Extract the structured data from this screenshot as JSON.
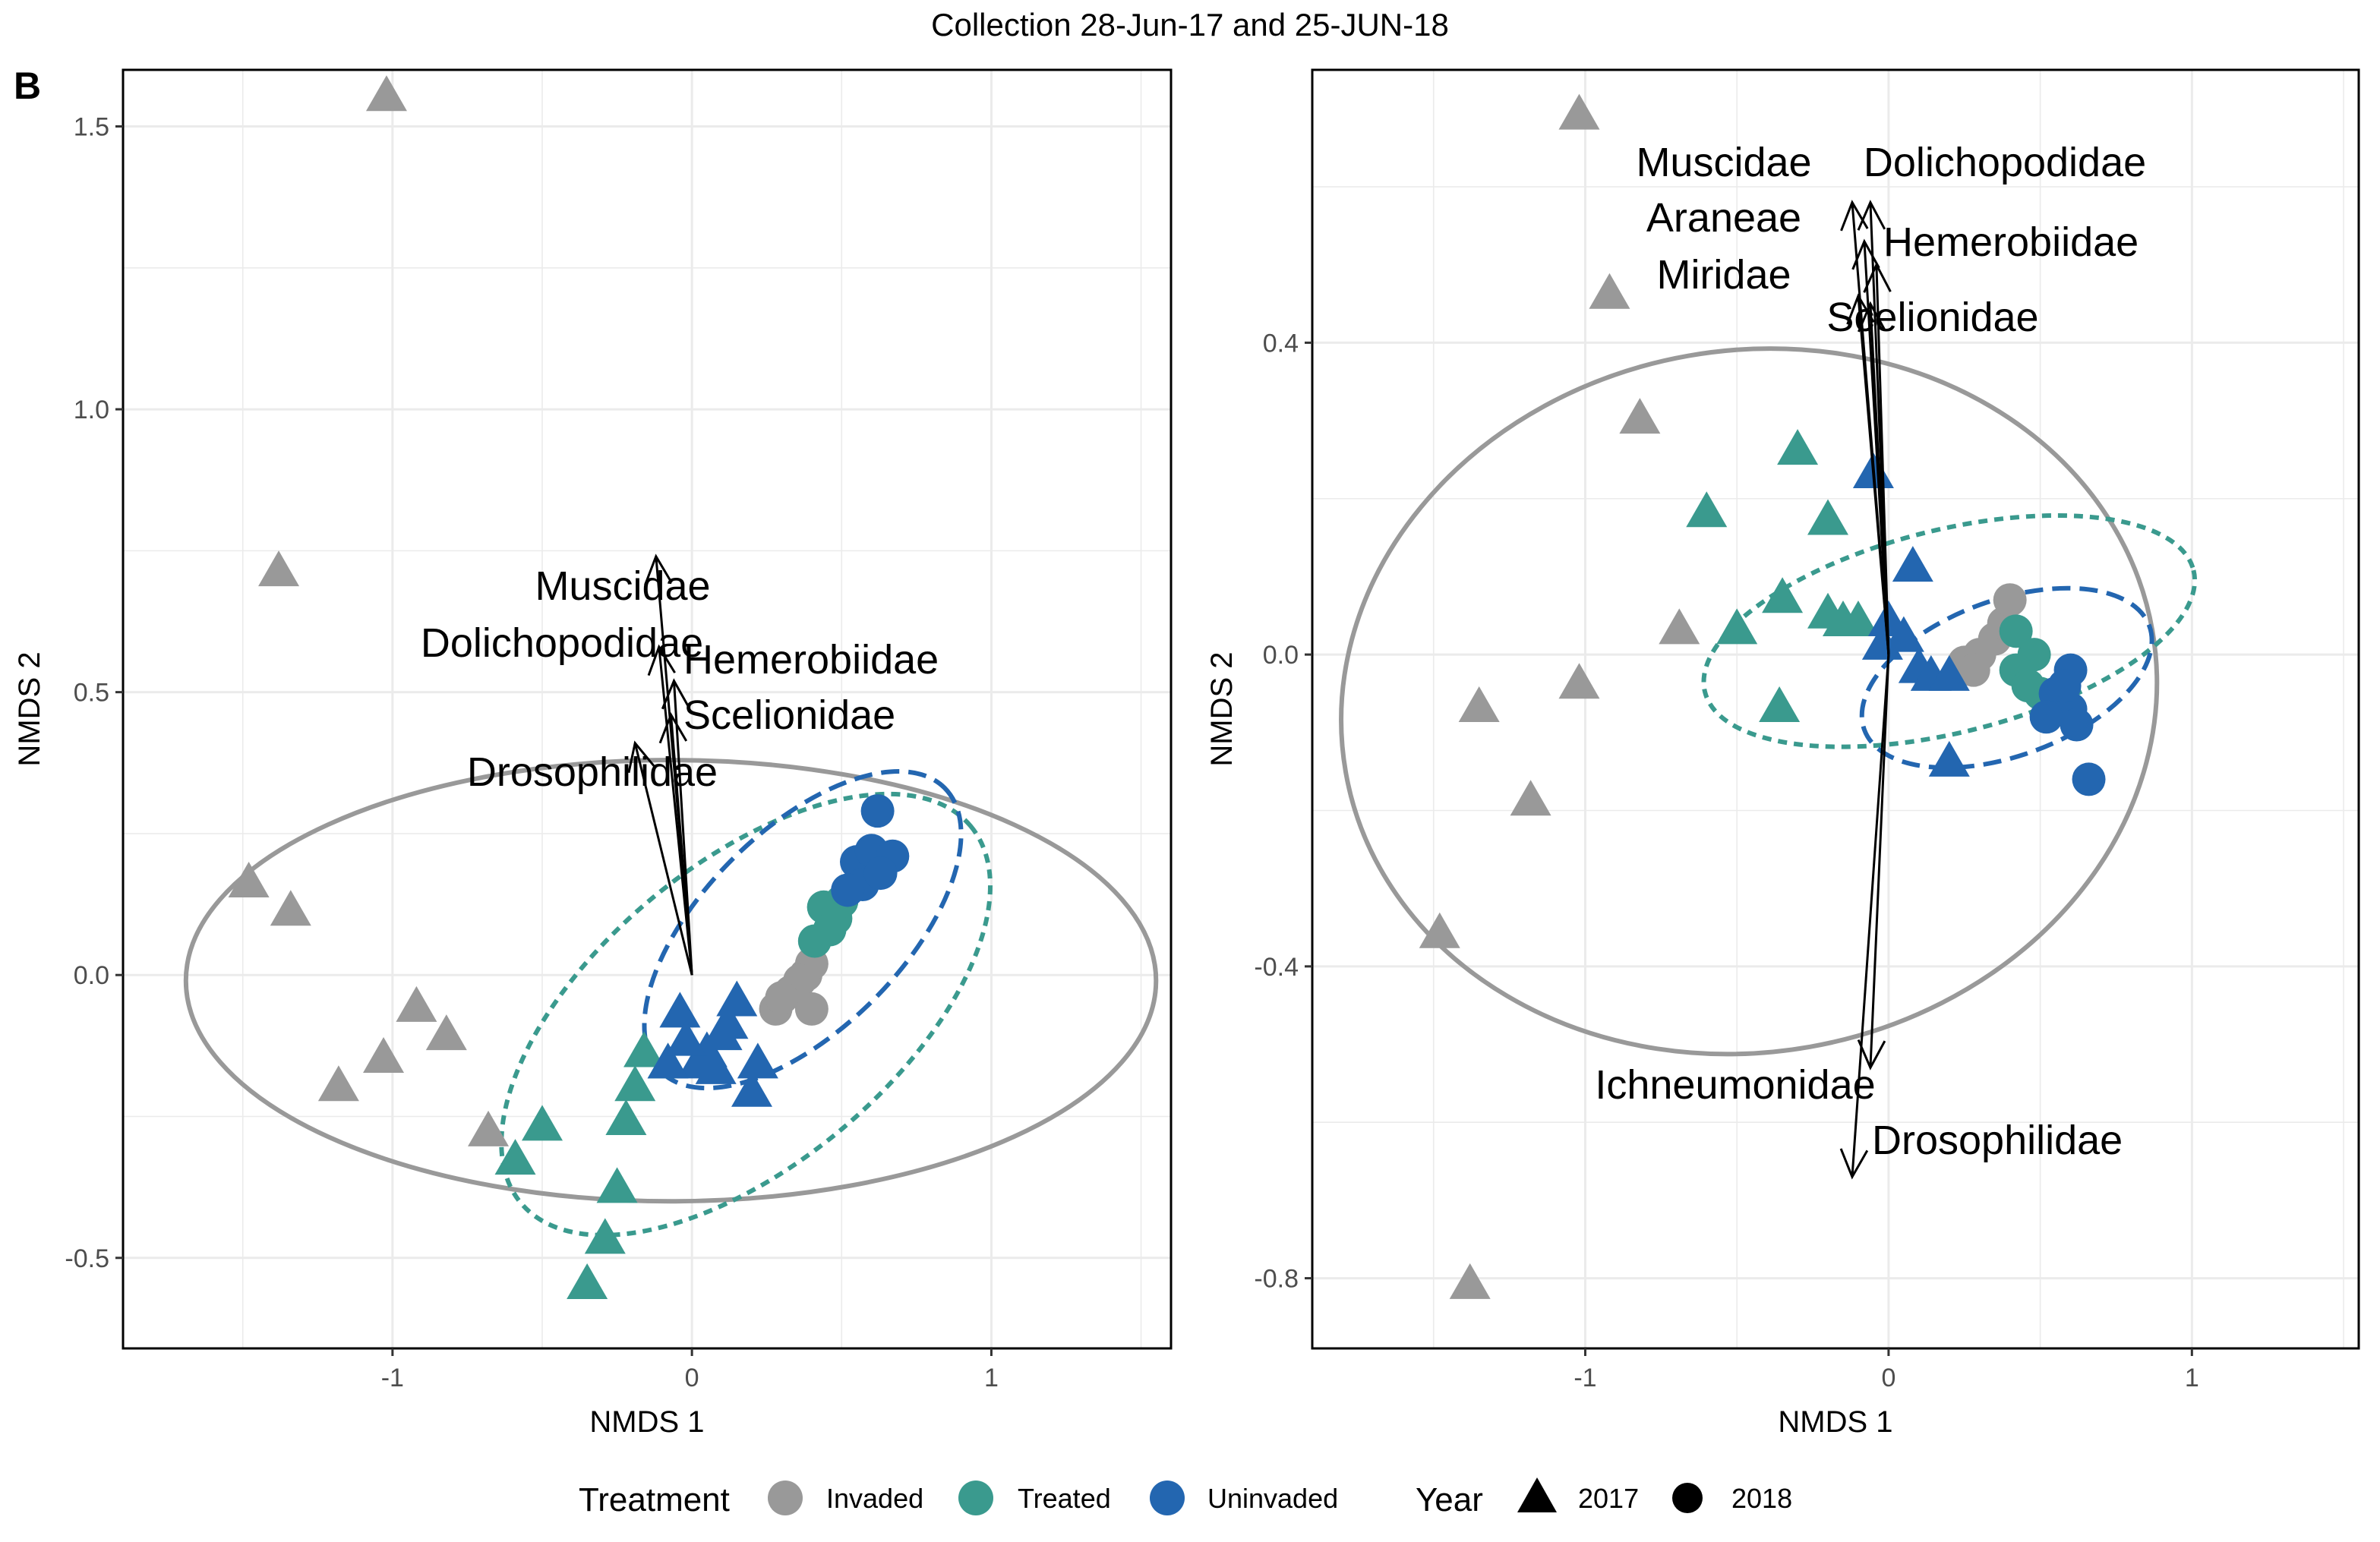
{
  "title": "Collection 28-Jun-17 and 25-JUN-18",
  "panel_letter": "B",
  "colors": {
    "Invaded": "#999999",
    "Treated": "#3a9a8e",
    "Uninvaded": "#2366b0",
    "vector": "#000000",
    "grid": "#ebebeb"
  },
  "legend": {
    "treatment_title": "Treatment",
    "treatment_items": [
      "Invaded",
      "Treated",
      "Uninvaded"
    ],
    "year_title": "Year",
    "year_items": [
      "2017",
      "2018"
    ]
  },
  "chart_data": [
    {
      "type": "scatter",
      "xlabel": "NMDS 1",
      "ylabel": "NMDS 2",
      "xlim": [
        -1.9,
        1.6
      ],
      "ylim": [
        -0.66,
        1.6
      ],
      "xticks": [
        -1,
        0,
        1
      ],
      "xtick_labels": [
        "-1",
        "0",
        "1"
      ],
      "yticks": [
        -0.5,
        0.0,
        0.5,
        1.0,
        1.5
      ],
      "ytick_labels": [
        "-0.5",
        "0.0",
        "0.5",
        "1.0",
        "1.5"
      ],
      "grid": true,
      "series": [
        {
          "name": "Invaded",
          "year": "2017",
          "points": [
            [
              -1.02,
              1.55
            ],
            [
              -1.38,
              0.71
            ],
            [
              -1.48,
              0.16
            ],
            [
              -1.34,
              0.11
            ],
            [
              -0.92,
              -0.06
            ],
            [
              -0.82,
              -0.11
            ],
            [
              -1.18,
              -0.2
            ],
            [
              -1.03,
              -0.15
            ],
            [
              -0.68,
              -0.28
            ]
          ]
        },
        {
          "name": "Invaded",
          "year": "2018",
          "points": [
            [
              0.28,
              -0.06
            ],
            [
              0.33,
              -0.03
            ],
            [
              0.38,
              0.0
            ],
            [
              0.4,
              0.02
            ],
            [
              0.36,
              -0.01
            ],
            [
              0.4,
              -0.06
            ],
            [
              0.3,
              -0.04
            ]
          ]
        },
        {
          "name": "Treated",
          "year": "2017",
          "points": [
            [
              -0.5,
              -0.27
            ],
            [
              -0.59,
              -0.33
            ],
            [
              -0.16,
              -0.14
            ],
            [
              -0.19,
              -0.2
            ],
            [
              -0.22,
              -0.26
            ],
            [
              -0.25,
              -0.38
            ],
            [
              -0.29,
              -0.47
            ],
            [
              -0.35,
              -0.55
            ],
            [
              -0.08,
              -0.16
            ]
          ]
        },
        {
          "name": "Treated",
          "year": "2018",
          "points": [
            [
              0.44,
              0.12
            ],
            [
              0.48,
              0.1
            ],
            [
              0.41,
              0.06
            ],
            [
              0.5,
              0.13
            ],
            [
              0.46,
              0.08
            ]
          ]
        },
        {
          "name": "Uninvaded",
          "year": "2017",
          "points": [
            [
              -0.04,
              -0.07
            ],
            [
              0.15,
              -0.05
            ],
            [
              0.1,
              -0.11
            ],
            [
              0.02,
              -0.16
            ],
            [
              -0.08,
              -0.16
            ],
            [
              0.22,
              -0.16
            ],
            [
              0.2,
              -0.21
            ],
            [
              0.05,
              -0.14
            ],
            [
              0.12,
              -0.09
            ],
            [
              -0.02,
              -0.12
            ],
            [
              0.08,
              -0.17
            ]
          ]
        },
        {
          "name": "Uninvaded",
          "year": "2018",
          "points": [
            [
              0.62,
              0.29
            ],
            [
              0.55,
              0.2
            ],
            [
              0.6,
              0.22
            ],
            [
              0.67,
              0.21
            ],
            [
              0.57,
              0.16
            ],
            [
              0.63,
              0.18
            ],
            [
              0.52,
              0.15
            ]
          ]
        }
      ],
      "ellipses": [
        {
          "group": "Invaded",
          "style": "solid",
          "center": [
            -0.07,
            -0.01
          ],
          "rx": 1.62,
          "ry": 0.39,
          "angle_deg": 0
        },
        {
          "group": "Treated",
          "style": "dotted",
          "center": [
            0.18,
            -0.07
          ],
          "rx": 0.98,
          "ry": 0.12,
          "angle_deg": 40
        },
        {
          "group": "Uninvaded",
          "style": "dashed",
          "center": [
            0.37,
            0.08
          ],
          "rx": 0.67,
          "ry": 0.08,
          "angle_deg": 45
        }
      ],
      "vectors": [
        {
          "label": "Muscidae",
          "end": [
            -0.12,
            0.74
          ]
        },
        {
          "label": "Dolichopodidae",
          "end": [
            -0.11,
            0.58
          ]
        },
        {
          "label": "Hemerobiidae",
          "end": [
            -0.06,
            0.52
          ]
        },
        {
          "label": "Scelionidae",
          "end": [
            -0.07,
            0.46
          ]
        },
        {
          "label": "Drosophilidae",
          "end": [
            -0.19,
            0.41
          ]
        }
      ]
    },
    {
      "type": "scatter",
      "xlabel": "NMDS 1",
      "ylabel": "NMDS 2",
      "xlim": [
        -1.9,
        1.55
      ],
      "ylim": [
        -0.89,
        0.75
      ],
      "xticks": [
        -1,
        0,
        1
      ],
      "xtick_labels": [
        "-1",
        "0",
        "1"
      ],
      "yticks": [
        -0.8,
        -0.4,
        0.0,
        0.4
      ],
      "ytick_labels": [
        "-0.8",
        "-0.4",
        "0.0",
        "0.4"
      ],
      "grid": true,
      "series": [
        {
          "name": "Invaded",
          "year": "2017",
          "points": [
            [
              -1.02,
              0.69
            ],
            [
              -0.92,
              0.46
            ],
            [
              -0.82,
              0.3
            ],
            [
              -0.69,
              0.03
            ],
            [
              -1.35,
              -0.07
            ],
            [
              -1.02,
              -0.04
            ],
            [
              -1.18,
              -0.19
            ],
            [
              -1.48,
              -0.36
            ],
            [
              -1.38,
              -0.81
            ]
          ]
        },
        {
          "name": "Invaded",
          "year": "2018",
          "points": [
            [
              0.25,
              -0.01
            ],
            [
              0.3,
              0.0
            ],
            [
              0.35,
              0.02
            ],
            [
              0.38,
              0.04
            ],
            [
              0.4,
              0.07
            ],
            [
              0.28,
              -0.02
            ]
          ]
        },
        {
          "name": "Treated",
          "year": "2017",
          "points": [
            [
              -0.3,
              0.26
            ],
            [
              -0.6,
              0.18
            ],
            [
              -0.2,
              0.17
            ],
            [
              -0.35,
              0.07
            ],
            [
              -0.5,
              0.03
            ],
            [
              -0.2,
              0.05
            ],
            [
              -0.1,
              0.04
            ],
            [
              -0.15,
              0.04
            ],
            [
              -0.36,
              -0.07
            ]
          ]
        },
        {
          "name": "Treated",
          "year": "2018",
          "points": [
            [
              0.42,
              0.03
            ],
            [
              0.48,
              0.0
            ],
            [
              0.42,
              -0.02
            ],
            [
              0.46,
              -0.04
            ],
            [
              0.5,
              -0.05
            ]
          ]
        },
        {
          "name": "Uninvaded",
          "year": "2017",
          "points": [
            [
              -0.05,
              0.23
            ],
            [
              0.08,
              0.11
            ],
            [
              0.0,
              0.04
            ],
            [
              0.05,
              0.02
            ],
            [
              0.1,
              -0.02
            ],
            [
              0.14,
              -0.03
            ],
            [
              0.2,
              -0.03
            ],
            [
              -0.02,
              0.01
            ],
            [
              0.2,
              -0.14
            ]
          ]
        },
        {
          "name": "Uninvaded",
          "year": "2018",
          "points": [
            [
              0.6,
              -0.02
            ],
            [
              0.55,
              -0.05
            ],
            [
              0.6,
              -0.07
            ],
            [
              0.62,
              -0.09
            ],
            [
              0.52,
              -0.08
            ],
            [
              0.66,
              -0.16
            ],
            [
              0.58,
              -0.04
            ]
          ]
        }
      ],
      "ellipses": [
        {
          "group": "Invaded",
          "style": "solid",
          "center": [
            -0.46,
            -0.06
          ],
          "rx": 1.35,
          "ry": 0.45,
          "angle_deg": 10
        },
        {
          "group": "Treated",
          "style": "dotted",
          "center": [
            0.2,
            0.03
          ],
          "rx": 0.83,
          "ry": 0.13,
          "angle_deg": 14
        },
        {
          "group": "Uninvaded",
          "style": "dashed",
          "center": [
            0.39,
            -0.03
          ],
          "rx": 0.5,
          "ry": 0.1,
          "angle_deg": 20
        }
      ],
      "vectors": [
        {
          "label": "Muscidae",
          "end": [
            -0.12,
            0.58
          ]
        },
        {
          "label": "Dolichopodidae",
          "end": [
            -0.06,
            0.58
          ]
        },
        {
          "label": "Araneae",
          "end": [
            -0.08,
            0.53
          ]
        },
        {
          "label": "Hemerobiidae",
          "end": [
            -0.04,
            0.5
          ]
        },
        {
          "label": "Miridae",
          "end": [
            -0.1,
            0.46
          ]
        },
        {
          "label": "Scelionidae",
          "end": [
            -0.06,
            0.45
          ]
        },
        {
          "label": "Ichneumonidae",
          "end": [
            -0.06,
            -0.53
          ]
        },
        {
          "label": "Drosophilidae",
          "end": [
            -0.12,
            -0.67
          ]
        }
      ]
    }
  ]
}
